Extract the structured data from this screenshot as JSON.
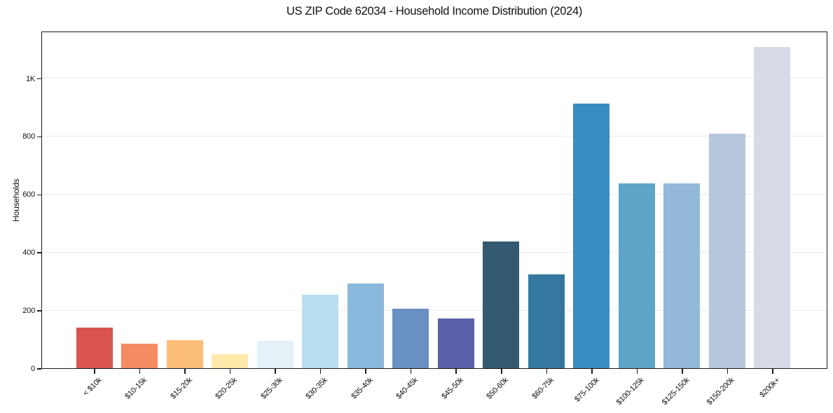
{
  "chart_data": {
    "type": "bar",
    "title": "US ZIP Code 62034 - Household Income Distribution (2024)",
    "xlabel": "",
    "ylabel": "Households",
    "categories": [
      "< $10k",
      "$10-15k",
      "$15-20k",
      "$20-25k",
      "$25-30k",
      "$30-35k",
      "$35-40k",
      "$40-45k",
      "$45-50k",
      "$50-60k",
      "$60-75k",
      "$75-100k",
      "$100-125k",
      "$125-150k",
      "$150-200k",
      "$200k+"
    ],
    "values": [
      140,
      85,
      97,
      48,
      94,
      253,
      293,
      204,
      172,
      437,
      323,
      912,
      638,
      638,
      809,
      1107
    ],
    "bar_colors": [
      "#d9544f",
      "#f68b63",
      "#fcbd79",
      "#fde9a9",
      "#e4f1f7",
      "#b9def0",
      "#8ab8dd",
      "#6990c3",
      "#5a60aa",
      "#335a70",
      "#35789f",
      "#378dbf",
      "#5ea5c9",
      "#93b8d8",
      "#b6c7dc",
      "#d8dae7"
    ],
    "ytick_values": [
      0,
      200,
      400,
      600,
      800,
      1000
    ],
    "ytick_labels": [
      "0",
      "200",
      "400",
      "600",
      "800",
      "1K"
    ],
    "ylim": [
      0,
      1163
    ],
    "grid": "horizontal",
    "legend": "none"
  }
}
